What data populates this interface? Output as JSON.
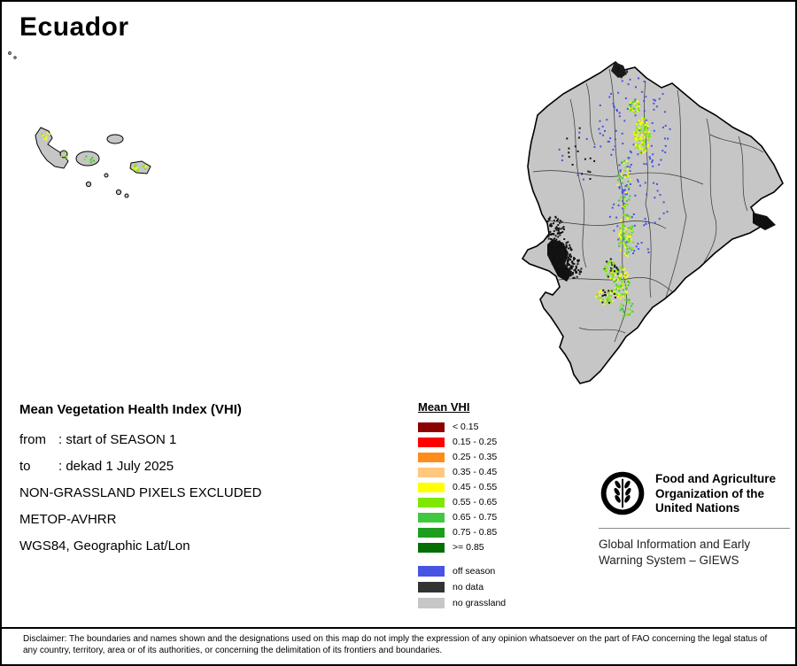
{
  "page": {
    "title": "Ecuador"
  },
  "details": {
    "heading": "Mean Vegetation Health Index (VHI)",
    "kv": [
      {
        "label": "from",
        "value": ": start of SEASON 1"
      },
      {
        "label": "to",
        "value": ": dekad 1 July 2025"
      }
    ],
    "plain": [
      "NON-GRASSLAND PIXELS EXCLUDED",
      "METOP-AVHRR",
      "WGS84, Geographic Lat/Lon"
    ]
  },
  "legend": {
    "title": "Mean VHI",
    "classes": [
      {
        "label": "< 0.15",
        "color": "#8B0000"
      },
      {
        "label": "0.15 - 0.25",
        "color": "#FF0000"
      },
      {
        "label": "0.25 - 0.35",
        "color": "#FF8C1A"
      },
      {
        "label": "0.35 - 0.45",
        "color": "#FFC87F"
      },
      {
        "label": "0.45 - 0.55",
        "color": "#FFFF00"
      },
      {
        "label": "0.55 - 0.65",
        "color": "#7FE800"
      },
      {
        "label": "0.65 - 0.75",
        "color": "#3FC93F"
      },
      {
        "label": "0.75 - 0.85",
        "color": "#1E9E1E"
      },
      {
        "label": ">= 0.85",
        "color": "#056E05"
      }
    ],
    "extras": [
      {
        "label": "off season",
        "color": "#4753E3"
      },
      {
        "label": "no data",
        "color": "#333333"
      },
      {
        "label": "no grassland",
        "color": "#C6C6C6"
      }
    ]
  },
  "fao": {
    "org_lines": [
      "Food and Agriculture",
      "Organization of the",
      "United Nations"
    ],
    "giews_lines": [
      "Global Information and Early",
      "Warning System – GIEWS"
    ]
  },
  "disclaimer": "Disclaimer: The boundaries and names shown and the designations used on this map do not imply the expression of any opinion whatsoever on the part of FAO concerning the legal status of any country, territory, area or of its authorities, or concerning the delimitation of its frontiers and boundaries."
}
